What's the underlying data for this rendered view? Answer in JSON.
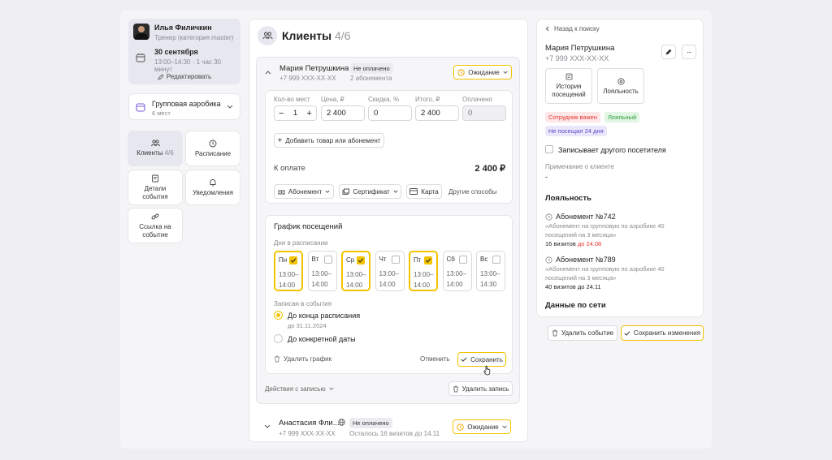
{
  "profile": {
    "name": "Илья Филичкин",
    "role": "Тренер (категория master)",
    "date": "30 сентября",
    "time": "13:00–14:30 · 1 час 30 минут",
    "edit_label": "Редактировать"
  },
  "group": {
    "title": "Групповая аэробика",
    "places": "6 мест"
  },
  "nav": {
    "clients_label": "Клиенты",
    "clients_count": "4/6",
    "schedule_label": "Расписание",
    "details_label": "Детали события",
    "notifications_label": "Уведомления",
    "link_label": "Ссылка на событие"
  },
  "main": {
    "title": "Клиенты",
    "count": "4/6",
    "client1": {
      "name": "Мария Петрушкина",
      "phone": "+7 999 XXX-XX-XX",
      "payment_badge": "Не оплачено",
      "subscriptions": "2 абонемента",
      "status": "Ожидание"
    },
    "form": {
      "qty_label": "Кол-во мест",
      "qty_value": "1",
      "price_label": "Цена, ₽",
      "price_value": "2 400",
      "discount_label": "Скидка, %",
      "discount_value": "0",
      "total_label": "Итого, ₽",
      "total_value": "2 400",
      "paid_label": "Оплачено",
      "paid_value": "0",
      "add_item": "Добавить товар или абонемент",
      "to_pay_label": "К оплате",
      "to_pay_value": "2 400 ₽",
      "pay_subscription": "Абонемент",
      "pay_certificate": "Сертификат",
      "pay_card": "Карта",
      "pay_other": "Другие способы"
    },
    "schedule": {
      "title": "График посещений",
      "days_label": "Дни в расписании",
      "days": [
        {
          "name": "Пн",
          "from": "13:00–",
          "to": "14:00",
          "on": true
        },
        {
          "name": "Вт",
          "from": "13:00–",
          "to": "14:00",
          "on": false
        },
        {
          "name": "Ср",
          "from": "13:00–",
          "to": "14:00",
          "on": true
        },
        {
          "name": "Чт",
          "from": "13:00–",
          "to": "14:00",
          "on": false
        },
        {
          "name": "Пт",
          "from": "13:00–",
          "to": "14:00",
          "on": true
        },
        {
          "name": "Сб",
          "from": "13:00–",
          "to": "14:00",
          "on": false
        },
        {
          "name": "Вс",
          "from": "13:00–",
          "to": "14:30",
          "on": false
        }
      ],
      "enrolled_label": "Записан в события",
      "option_end": "До конца расписания",
      "option_end_date": "до 31.11.2024",
      "option_date": "До конкретной даты",
      "delete_schedule": "Удалить график",
      "cancel": "Отменить",
      "save": "Сохранить"
    },
    "actions_label": "Действия с записью",
    "delete_record": "Удалить запись",
    "client2": {
      "name": "Анастасия Фли...",
      "phone": "+7 999 XXX-XX-XX",
      "payment_badge": "Не оплачено",
      "remaining": "Осталось 16 визитов до 14.11",
      "status": "Ожидание"
    }
  },
  "detail": {
    "back": "Назад к поиску",
    "name": "Мария Петрушкина",
    "phone": "+7 999 XXX-XX-XX",
    "history_label": "История посещений",
    "loyalty_btn": "Лояльность",
    "tags": [
      "Сотрудник важен",
      "Лояльный",
      "Не посещал 24 дня"
    ],
    "checkbox_label": "Записывает другого посетителя",
    "note_label": "Примечание о клиенте",
    "note_value": "-",
    "loyalty_title": "Лояльность",
    "sub1": {
      "title": "Абонемент №742",
      "desc": "«Абонемент на групповую по аэробике 40 посещений на 3 месяца»",
      "visits": "16 визитов",
      "until": "до 24.08"
    },
    "sub2": {
      "title": "Абонемент №789",
      "desc": "«Абонемент на групповую по аэробике 40 посещений на 3 месяца»",
      "visits": "40 визитов до 24.11"
    },
    "network_title": "Данные по сети",
    "delete_event": "Удалить событие",
    "save_changes": "Сохранить изменения"
  },
  "colors": {
    "accent": "#f2c300",
    "danger": "#e53935",
    "brand": "#7b61d9"
  }
}
